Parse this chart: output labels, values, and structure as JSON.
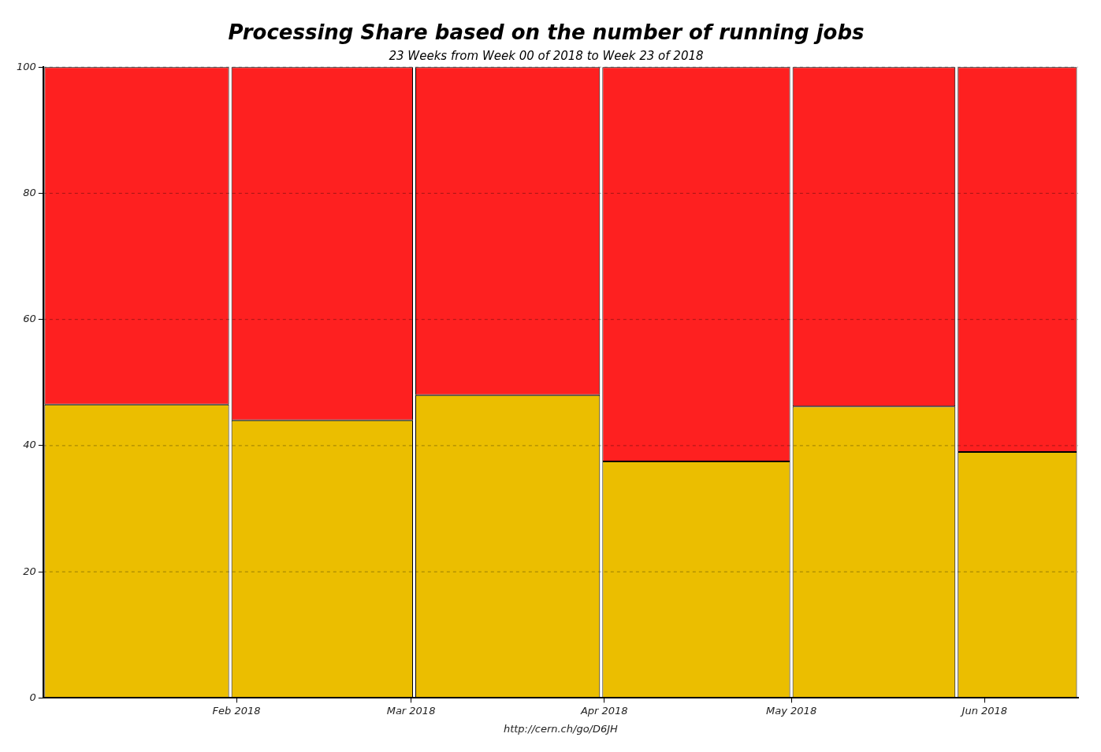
{
  "chart_data": {
    "type": "bar",
    "title": "Processing Share based on the number of running jobs",
    "subtitle": "23 Weeks from Week 00 of 2018 to Week 23 of 2018",
    "stacked": true,
    "x": [
      "2018-01-16",
      "2018-02-15",
      "2018-03-16",
      "2018-04-16",
      "2018-05-16",
      "2018-06-08"
    ],
    "series": [
      {
        "color": "#ebbe00",
        "values": [
          46.5,
          44,
          48,
          37.5,
          46.2,
          39
        ]
      },
      {
        "color": "#fe2020",
        "values": [
          53.5,
          56,
          52,
          62.5,
          53.8,
          61
        ]
      }
    ],
    "xlim": [
      "2018-01-01",
      "2018-06-16"
    ],
    "xticks": [
      {
        "value": "2018-02-01",
        "label": "Feb 2018"
      },
      {
        "value": "2018-03-01",
        "label": "Mar 2018"
      },
      {
        "value": "2018-04-01",
        "label": "Apr 2018"
      },
      {
        "value": "2018-05-01",
        "label": "May 2018"
      },
      {
        "value": "2018-06-01",
        "label": "Jun 2018"
      }
    ],
    "ylim": [
      0,
      100
    ],
    "yticks": [
      0,
      20,
      40,
      60,
      80,
      100
    ],
    "grid": "y",
    "legend": false,
    "annotations": [
      "http://cern.ch/go/D6JH"
    ]
  }
}
